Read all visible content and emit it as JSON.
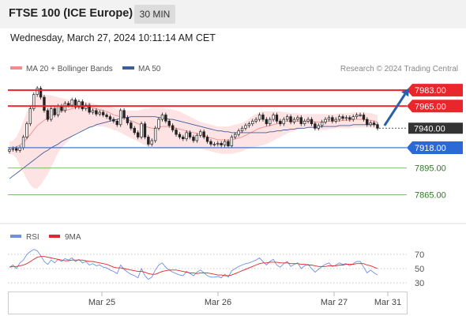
{
  "header": {
    "title": "FTSE 100 (ICE Europe)",
    "timeframe": "30 MIN",
    "datetime": "Wednesday, March 27, 2024 10:11:14 AM CET"
  },
  "legend": {
    "ma20_label": "MA 20 + Bollinger Bands",
    "ma50_label": "MA 50",
    "credit": "Research © 2024 Trading Central"
  },
  "colors": {
    "up_candle": "#ffffff",
    "down_candle": "#222222",
    "band_fill": "#fde3e3",
    "ma20": "#f28c8c",
    "ma50": "#3f5d9c",
    "resistance": "#e8262b",
    "support_blue": "#2b6ad6",
    "target_green": "#5aa34a",
    "arrow": "#2b5fa8",
    "rsi": "#6f8fe0",
    "rsi_ma": "#e0282d"
  },
  "chart_data": [
    {
      "type": "candlestick",
      "title": "FTSE 100 (ICE Europe)",
      "timeframe": "30 MIN",
      "x_tick_labels": [
        "Mar 25",
        "Mar 26",
        "Mar 27",
        "Mar 31"
      ],
      "ylim": [
        7835,
        7992
      ],
      "levels": [
        {
          "label": "7983.00",
          "value": 7983,
          "kind": "resistance",
          "color": "#e8262b"
        },
        {
          "label": "7965.00",
          "value": 7965,
          "kind": "resistance",
          "color": "#e8262b"
        },
        {
          "label": "7940.00",
          "value": 7940,
          "kind": "last",
          "color": "#333333"
        },
        {
          "label": "7918.00",
          "value": 7918,
          "kind": "support",
          "color": "#2b6ad6"
        },
        {
          "label": "7895.00",
          "value": 7895,
          "kind": "target",
          "color": "#5aa34a"
        },
        {
          "label": "7865.00",
          "value": 7865,
          "kind": "target",
          "color": "#5aa34a"
        }
      ],
      "arrow": {
        "from": [
          108,
          7943
        ],
        "to": [
          115,
          7985
        ]
      },
      "closes": [
        7916,
        7917,
        7915,
        7918,
        7930,
        7945,
        7962,
        7978,
        7985,
        7975,
        7960,
        7950,
        7962,
        7955,
        7965,
        7960,
        7968,
        7966,
        7972,
        7964,
        7970,
        7962,
        7966,
        7958,
        7960,
        7956,
        7958,
        7955,
        7953,
        7950,
        7948,
        7944,
        7960,
        7952,
        7946,
        7940,
        7935,
        7930,
        7945,
        7930,
        7922,
        7926,
        7940,
        7950,
        7955,
        7948,
        7943,
        7938,
        7933,
        7930,
        7928,
        7935,
        7930,
        7926,
        7932,
        7936,
        7930,
        7925,
        7922,
        7922,
        7923,
        7921,
        7925,
        7920,
        7930,
        7933,
        7937,
        7940,
        7943,
        7945,
        7948,
        7950,
        7955,
        7950,
        7945,
        7950,
        7955,
        7948,
        7945,
        7950,
        7953,
        7947,
        7950,
        7952,
        7945,
        7948,
        7950,
        7945,
        7940,
        7943,
        7947,
        7950,
        7952,
        7948,
        7950,
        7953,
        7951,
        7952,
        7950,
        7953,
        7955,
        7955,
        7950,
        7944,
        7946,
        7944,
        7940
      ],
      "ma20": [
        7918,
        7918,
        7919,
        7921,
        7924,
        7928,
        7933,
        7938,
        7943,
        7946,
        7949,
        7951,
        7954,
        7956,
        7958,
        7959,
        7960,
        7961,
        7962,
        7963,
        7964,
        7964,
        7964,
        7964,
        7963,
        7962,
        7961,
        7960,
        7959,
        7957,
        7955,
        7954,
        7953,
        7952,
        7950,
        7948,
        7947,
        7945,
        7944,
        7942,
        7941,
        7940,
        7940,
        7941,
        7942,
        7942,
        7942,
        7941,
        7940,
        7939,
        7938,
        7937,
        7936,
        7935,
        7934,
        7933,
        7932,
        7930,
        7929,
        7928,
        7927,
        7927,
        7927,
        7926,
        7927,
        7928,
        7929,
        7930,
        7932,
        7934,
        7936,
        7938,
        7940,
        7941,
        7942,
        7943,
        7944,
        7945,
        7946,
        7947,
        7948,
        7948,
        7948,
        7948,
        7948,
        7948,
        7948,
        7948,
        7947,
        7947,
        7947,
        7947,
        7948,
        7948,
        7948,
        7948,
        7949,
        7949,
        7949,
        7950,
        7950,
        7950,
        7950,
        7949,
        7949,
        7948,
        7947
      ],
      "bb_upper": [
        7925,
        7926,
        7930,
        7938,
        7948,
        7958,
        7967,
        7974,
        7978,
        7979,
        7978,
        7977,
        7977,
        7976,
        7975,
        7974,
        7973,
        7972,
        7972,
        7971,
        7971,
        7970,
        7970,
        7969,
        7968,
        7967,
        7966,
        7965,
        7965,
        7964,
        7963,
        7962,
        7962,
        7961,
        7960,
        7960,
        7960,
        7960,
        7961,
        7962,
        7962,
        7963,
        7963,
        7963,
        7963,
        7962,
        7962,
        7961,
        7960,
        7959,
        7957,
        7955,
        7953,
        7951,
        7949,
        7947,
        7946,
        7945,
        7944,
        7943,
        7942,
        7942,
        7942,
        7942,
        7943,
        7944,
        7945,
        7946,
        7948,
        7951,
        7954,
        7956,
        7958,
        7959,
        7959,
        7959,
        7959,
        7959,
        7959,
        7958,
        7958,
        7957,
        7957,
        7957,
        7956,
        7956,
        7956,
        7956,
        7956,
        7956,
        7956,
        7956,
        7956,
        7956,
        7956,
        7957,
        7957,
        7957,
        7957,
        7958,
        7958,
        7958,
        7958,
        7957,
        7957,
        7956,
        7955
      ],
      "bb_lower": [
        7911,
        7910,
        7906,
        7898,
        7890,
        7882,
        7876,
        7872,
        7872,
        7876,
        7882,
        7888,
        7896,
        7904,
        7912,
        7918,
        7922,
        7926,
        7930,
        7934,
        7936,
        7938,
        7940,
        7941,
        7942,
        7942,
        7942,
        7942,
        7941,
        7940,
        7938,
        7937,
        7935,
        7933,
        7931,
        7929,
        7927,
        7925,
        7923,
        7921,
        7919,
        7918,
        7917,
        7917,
        7917,
        7917,
        7917,
        7917,
        7917,
        7917,
        7917,
        7917,
        7917,
        7917,
        7917,
        7917,
        7916,
        7915,
        7914,
        7913,
        7912,
        7911,
        7911,
        7911,
        7911,
        7912,
        7913,
        7914,
        7916,
        7917,
        7918,
        7919,
        7920,
        7921,
        7922,
        7924,
        7926,
        7928,
        7930,
        7932,
        7934,
        7936,
        7937,
        7938,
        7939,
        7940,
        7940,
        7940,
        7939,
        7938,
        7938,
        7938,
        7939,
        7939,
        7940,
        7940,
        7940,
        7940,
        7940,
        7941,
        7941,
        7941,
        7941,
        7941,
        7941,
        7940,
        7939
      ],
      "ma50": [
        7883,
        7886,
        7889,
        7892,
        7895,
        7898,
        7901,
        7904,
        7907,
        7910,
        7913,
        7915,
        7918,
        7920,
        7922,
        7925,
        7927,
        7929,
        7931,
        7933,
        7935,
        7937,
        7939,
        7941,
        7942,
        7944,
        7945,
        7946,
        7947,
        7948,
        7949,
        7950,
        7951,
        7952,
        7952,
        7953,
        7953,
        7953,
        7953,
        7953,
        7953,
        7953,
        7953,
        7952,
        7952,
        7951,
        7950,
        7950,
        7949,
        7948,
        7947,
        7946,
        7945,
        7944,
        7943,
        7942,
        7941,
        7940,
        7939,
        7938,
        7937,
        7937,
        7936,
        7936,
        7935,
        7935,
        7935,
        7935,
        7935,
        7935,
        7935,
        7935,
        7935,
        7935,
        7935,
        7936,
        7936,
        7937,
        7937,
        7938,
        7938,
        7939,
        7939,
        7940,
        7940,
        7940,
        7941,
        7941,
        7941,
        7941,
        7942,
        7942,
        7942,
        7942,
        7942,
        7943,
        7943,
        7943,
        7943,
        7944,
        7944,
        7944,
        7944,
        7944,
        7944,
        7944,
        7944
      ],
      "legend": [
        "MA 20 + Bollinger Bands",
        "MA 50"
      ]
    },
    {
      "type": "line",
      "title": "RSI",
      "ylim": [
        20,
        80
      ],
      "y_ticks": [
        70,
        50,
        30
      ],
      "series": [
        {
          "name": "RSI",
          "color": "#6f8fe0",
          "values": [
            52,
            55,
            50,
            58,
            62,
            70,
            74,
            77,
            75,
            68,
            60,
            56,
            62,
            58,
            63,
            60,
            64,
            62,
            65,
            60,
            63,
            58,
            60,
            55,
            57,
            54,
            55,
            52,
            51,
            48,
            46,
            43,
            55,
            49,
            45,
            42,
            40,
            37,
            50,
            40,
            35,
            38,
            48,
            55,
            58,
            52,
            48,
            45,
            43,
            41,
            40,
            46,
            43,
            40,
            45,
            48,
            44,
            40,
            38,
            38,
            39,
            37,
            42,
            38,
            47,
            50,
            53,
            55,
            57,
            58,
            60,
            62,
            65,
            60,
            55,
            60,
            63,
            55,
            52,
            57,
            60,
            53,
            56,
            58,
            50,
            54,
            56,
            50,
            45,
            49,
            53,
            56,
            58,
            53,
            55,
            58,
            56,
            57,
            54,
            57,
            60,
            60,
            52,
            44,
            48,
            44,
            41
          ]
        },
        {
          "name": "9MA",
          "color": "#e0282d",
          "values": [
            52,
            53,
            53,
            54,
            55,
            57,
            60,
            63,
            66,
            67,
            67,
            66,
            65,
            64,
            63,
            62,
            61,
            61,
            62,
            62,
            62,
            62,
            61,
            60,
            60,
            59,
            58,
            57,
            56,
            54,
            52,
            51,
            51,
            50,
            49,
            48,
            47,
            46,
            46,
            45,
            43,
            42,
            42,
            44,
            46,
            47,
            48,
            48,
            48,
            47,
            46,
            45,
            44,
            44,
            43,
            44,
            44,
            44,
            43,
            42,
            41,
            41,
            40,
            40,
            41,
            43,
            45,
            47,
            49,
            51,
            53,
            55,
            57,
            58,
            58,
            59,
            59,
            59,
            58,
            58,
            58,
            57,
            57,
            57,
            56,
            56,
            55,
            55,
            54,
            53,
            53,
            53,
            54,
            54,
            54,
            55,
            55,
            56,
            56,
            56,
            57,
            57,
            57,
            55,
            54,
            52,
            50
          ]
        }
      ]
    }
  ]
}
